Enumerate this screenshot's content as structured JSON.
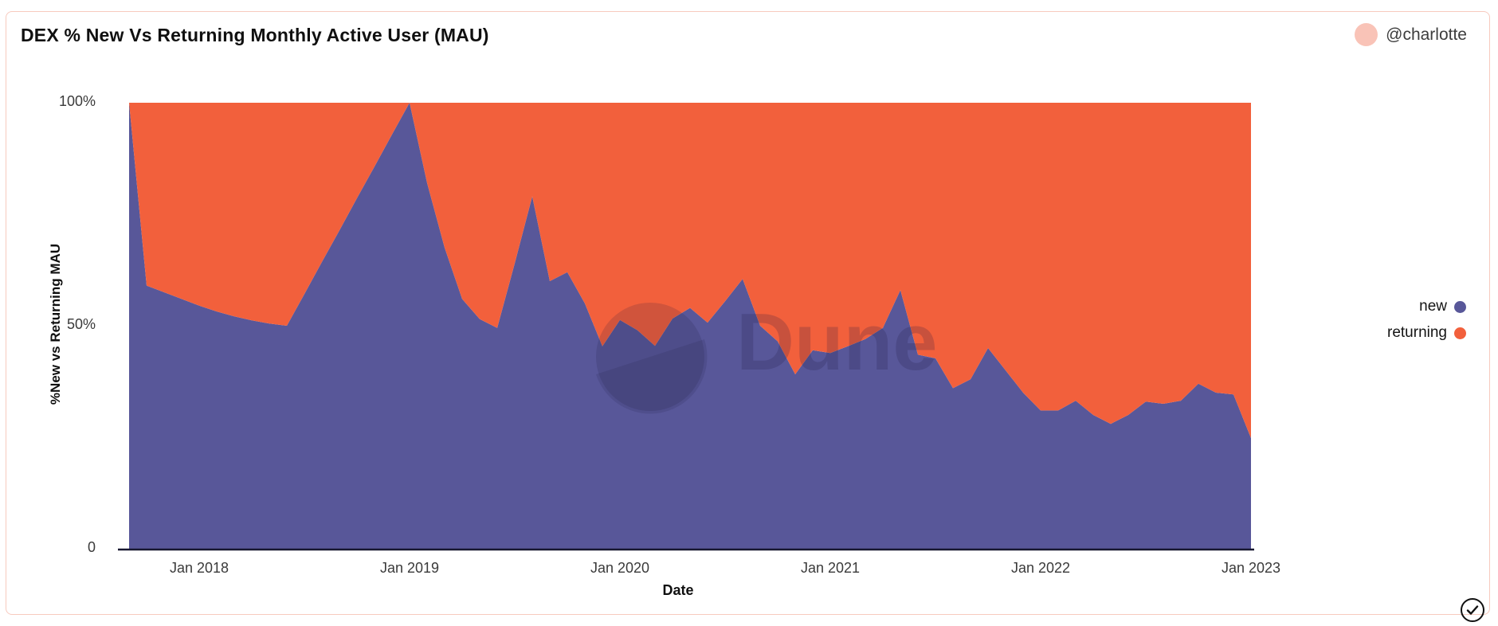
{
  "card": {
    "title": "DEX % New Vs Returning Monthly Active User (MAU)",
    "author": "@charlotte"
  },
  "watermark": {
    "text": "Dune"
  },
  "chart_data": {
    "type": "area",
    "stacked": true,
    "percent_stacked": true,
    "title": "DEX % New Vs Returning Monthly Active User (MAU)",
    "xlabel": "Date",
    "ylabel": "%New vs Returning MAU",
    "ylim": [
      0,
      100
    ],
    "grid": false,
    "legend_position": "right",
    "y_ticks": [
      "100%",
      "50%",
      "0"
    ],
    "x_ticks": [
      "Jan 2018",
      "Jan 2019",
      "Jan 2020",
      "Jan 2021",
      "Jan 2022",
      "Jan 2023"
    ],
    "x": [
      "2017-09",
      "2017-10",
      "2017-11",
      "2017-12",
      "2018-01",
      "2018-02",
      "2018-03",
      "2018-04",
      "2018-05",
      "2018-06",
      "2018-07",
      "2018-08",
      "2018-09",
      "2018-10",
      "2018-11",
      "2018-12",
      "2019-01",
      "2019-02",
      "2019-03",
      "2019-04",
      "2019-05",
      "2019-06",
      "2019-07",
      "2019-08",
      "2019-09",
      "2019-10",
      "2019-11",
      "2019-12",
      "2020-01",
      "2020-02",
      "2020-03",
      "2020-04",
      "2020-05",
      "2020-06",
      "2020-07",
      "2020-08",
      "2020-09",
      "2020-10",
      "2020-11",
      "2020-12",
      "2021-01",
      "2021-02",
      "2021-03",
      "2021-04",
      "2021-05",
      "2021-06",
      "2021-07",
      "2021-08",
      "2021-09",
      "2021-10",
      "2021-11",
      "2021-12",
      "2022-01",
      "2022-02",
      "2022-03",
      "2022-04",
      "2022-05",
      "2022-06",
      "2022-07",
      "2022-08",
      "2022-09",
      "2022-10",
      "2022-11",
      "2022-12",
      "2023-01"
    ],
    "series": [
      {
        "name": "new",
        "color": "#585799",
        "values": [
          100,
          59,
          57.5,
          56,
          54.5,
          53.2,
          52.1,
          51.2,
          50.5,
          50,
          57.1,
          64.3,
          71.4,
          78.6,
          85.7,
          92.9,
          100,
          82,
          67.5,
          56,
          51.5,
          49.5,
          64,
          79,
          60,
          62,
          55,
          45.4,
          51.3,
          49,
          45.5,
          51.6,
          54,
          50.7,
          55.5,
          60.5,
          50,
          46.5,
          39.1,
          44.5,
          43.9,
          45.4,
          47,
          49.5,
          58,
          43.5,
          42.7,
          36,
          38,
          45,
          40,
          35,
          31,
          31,
          33.2,
          30,
          28,
          30,
          33,
          32.5,
          33.2,
          37,
          35,
          34.6,
          24.8
        ]
      },
      {
        "name": "returning",
        "color": "#F2603C",
        "values": [
          0,
          41,
          42.5,
          44,
          45.5,
          46.8,
          47.9,
          48.8,
          49.5,
          50,
          42.9,
          35.7,
          28.6,
          21.4,
          14.3,
          7.1,
          0,
          18,
          32.5,
          44,
          48.5,
          50.5,
          36,
          21,
          40,
          38,
          45,
          54.6,
          48.7,
          51,
          54.5,
          48.4,
          46,
          49.3,
          44.5,
          39.5,
          50,
          53.5,
          60.9,
          55.5,
          56.1,
          54.6,
          53,
          50.5,
          42,
          56.5,
          57.3,
          64,
          62,
          55,
          60,
          65,
          69,
          69,
          66.8,
          70,
          72,
          70,
          67,
          67.5,
          66.8,
          63,
          65,
          65.4,
          75.2
        ]
      }
    ]
  }
}
